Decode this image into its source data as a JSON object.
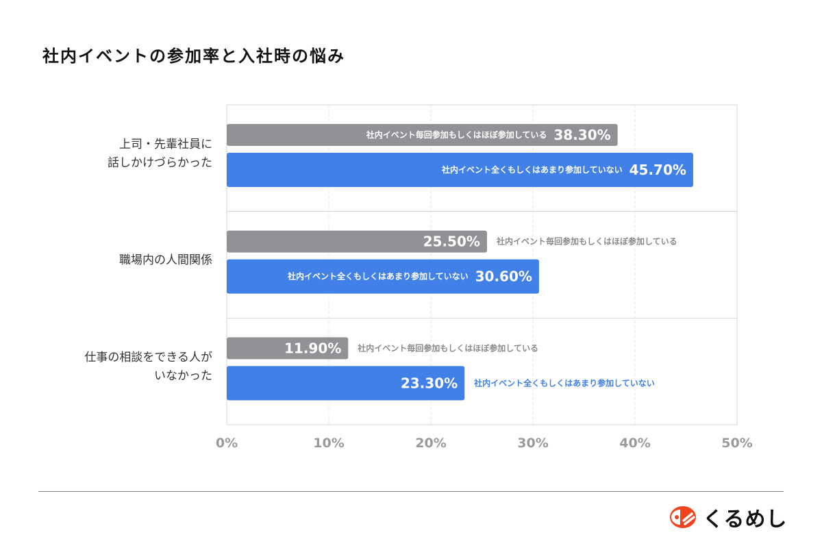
{
  "chart_data": {
    "type": "bar",
    "orientation": "horizontal",
    "title": "社内イベントの参加率と入社時の悩み",
    "categories": [
      "上司・先輩社員に\n話しかけづらかった",
      "職場内の人間関係",
      "仕事の相談をできる人が\nいなかった"
    ],
    "series": [
      {
        "name": "社内イベント毎回参加もしくはほぼ参加している",
        "values": [
          38.3,
          25.5,
          11.9
        ],
        "labels": [
          "38.30%",
          "25.50%",
          "11.90%"
        ],
        "color": "#939195"
      },
      {
        "name": "社内イベント全くもしくはあまり参加していない",
        "values": [
          45.7,
          30.6,
          23.3
        ],
        "labels": [
          "45.70%",
          "30.60%",
          "23.30%"
        ],
        "color": "#4180e6"
      }
    ],
    "xlim": [
      0,
      50
    ],
    "xticks": [
      "0%",
      "10%",
      "20%",
      "30%",
      "40%",
      "50%"
    ],
    "grid": true,
    "legend": "inline-data-labels"
  },
  "brand": {
    "name": "くるめし",
    "color": "#f0441f"
  }
}
